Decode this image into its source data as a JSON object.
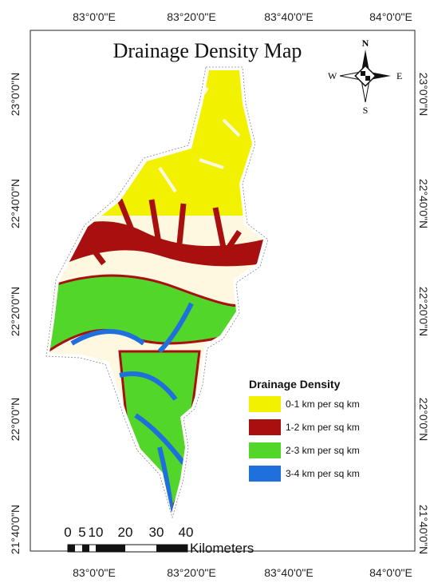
{
  "title": "Drainage Density Map",
  "top_ticks": [
    "83°0'0\"E",
    "83°20'0\"E",
    "83°40'0\"E",
    "84°0'0\"E"
  ],
  "bottom_ticks": [
    "83°0'0\"E",
    "83°20'0\"E",
    "83°40'0\"E",
    "84°0'0\"E"
  ],
  "left_ticks": [
    "23°0'0\"N",
    "22°40'0\"N",
    "22°20'0\"N",
    "22°0'0\"N",
    "21°40'0\"N"
  ],
  "right_ticks": [
    "23°0'0\"N",
    "22°40'0\"N",
    "22°20'0\"N",
    "22°0'0\"N",
    "21°40'0\"N"
  ],
  "compass": {
    "n": "N",
    "s": "S",
    "e": "E",
    "w": "W"
  },
  "legend": {
    "title": "Drainage Density",
    "items": [
      {
        "label": "0-1 km per sq km",
        "color": "#f2f200"
      },
      {
        "label": "1-2 km per sq km",
        "color": "#a80f0f"
      },
      {
        "label": "2-3 km per sq km",
        "color": "#52d62a"
      },
      {
        "label": "3-4 km per sq km",
        "color": "#1f6fdc"
      }
    ]
  },
  "scale_bar": {
    "labels": [
      "0",
      "5",
      "10",
      "20",
      "30",
      "40"
    ],
    "unit": "Kilometers"
  }
}
